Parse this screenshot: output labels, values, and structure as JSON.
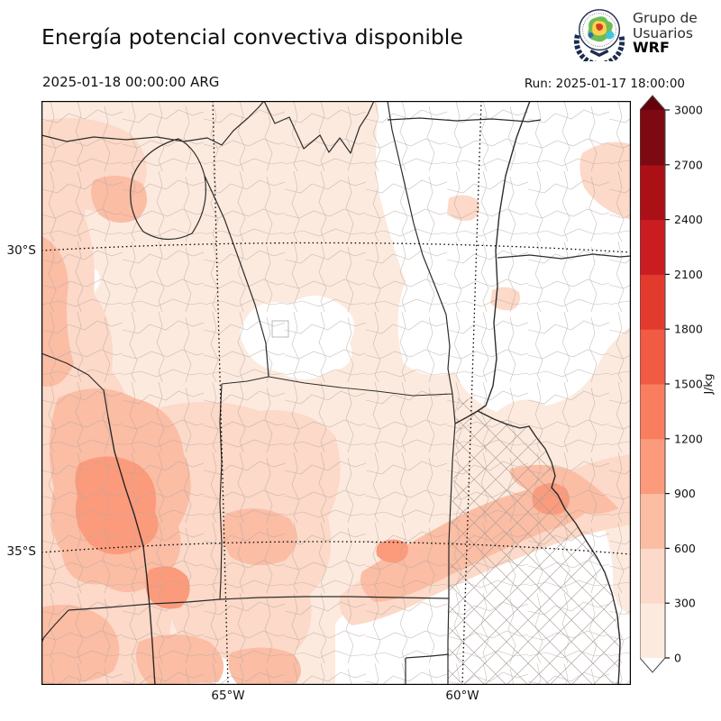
{
  "header": {
    "title": "Energía potencial convectiva disponible",
    "valid_time": "2025-01-18 00:00:00 ARG",
    "run": "Run: 2025-01-17 18:00:00",
    "logo": {
      "line1": "Grupo de",
      "line2": "Usuarios",
      "line3": "WRF"
    }
  },
  "axes": {
    "lat": [
      "30°S",
      "35°S"
    ],
    "lon": [
      "65°W",
      "60°W"
    ]
  },
  "colorbar": {
    "unit": "J/kg",
    "ticks": [
      "0",
      "300",
      "600",
      "900",
      "1200",
      "1500",
      "1800",
      "2100",
      "2400",
      "2700",
      "3000"
    ],
    "segment_colors": [
      "#fdeade",
      "#fcd9c8",
      "#fbbda4",
      "#fb9b7c",
      "#f97e60",
      "#f15a43",
      "#e23b2e",
      "#ca1d21",
      "#ab1016",
      "#7d0912"
    ],
    "under_color": "#ffffff",
    "over_color": "#67000d",
    "border_color": "#4a4a4a"
  },
  "map_palette": {
    "base": "#fdeade",
    "l2": "#fcd9c8",
    "l3": "#fbbda4",
    "l4": "#fb9b7c",
    "white": "#ffffff",
    "province_border": "#1c1c1c",
    "dept_border": "#b5a8a2",
    "grid_color": "#000000"
  }
}
